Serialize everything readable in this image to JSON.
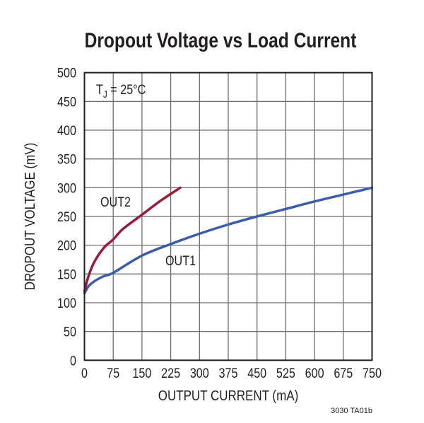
{
  "chart_data": {
    "type": "line",
    "title": "Dropout Voltage vs Load Current",
    "xlabel": "OUTPUT CURRENT (mA)",
    "ylabel": "DROPOUT VOLTAGE (mV)",
    "xlim": [
      0,
      750
    ],
    "ylim": [
      0,
      500
    ],
    "xticks": [
      "0",
      "75",
      "150",
      "225",
      "300",
      "375",
      "450",
      "525",
      "600",
      "675",
      "750"
    ],
    "yticks": [
      "0",
      "50",
      "100",
      "150",
      "200",
      "250",
      "300",
      "350",
      "400",
      "450",
      "500"
    ],
    "grid": true,
    "annotation": {
      "main": "T",
      "sub": "J",
      "rest": " = 25°C"
    },
    "footnote": "3030 TA01b",
    "series": [
      {
        "name": "OUT1",
        "color": "#3a5eab",
        "x": [
          0,
          10,
          25,
          50,
          75,
          150,
          225,
          300,
          375,
          450,
          525,
          600,
          675,
          750
        ],
        "y": [
          116,
          128,
          137,
          146,
          152,
          182,
          202,
          220,
          236,
          250,
          263,
          276,
          288,
          300
        ]
      },
      {
        "name": "OUT2",
        "color": "#9b1b3a",
        "x": [
          0,
          10,
          25,
          50,
          75,
          100,
          150,
          200,
          250
        ],
        "y": [
          120,
          145,
          170,
          195,
          210,
          228,
          253,
          278,
          300
        ]
      }
    ]
  }
}
